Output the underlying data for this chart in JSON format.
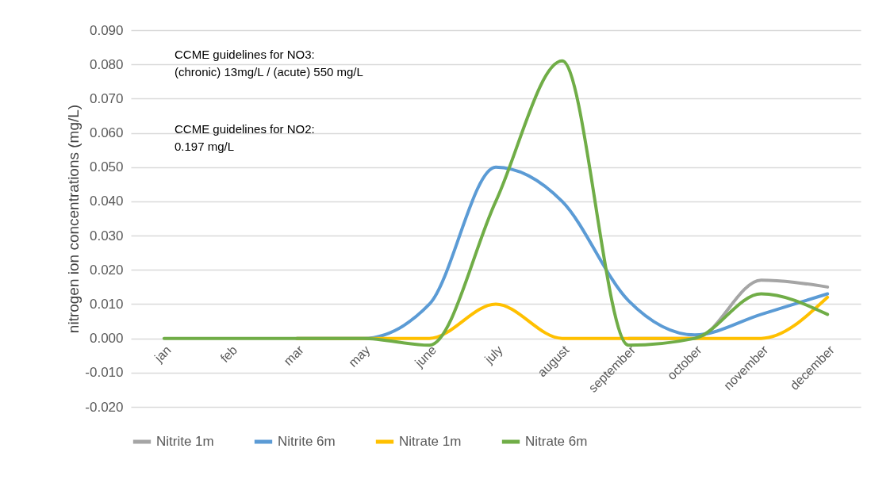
{
  "chart_data": {
    "type": "line",
    "ylabel": "nitrogen ion concentrations (mg/L)",
    "categories": [
      "jan",
      "feb",
      "mar",
      "may",
      "june",
      "july",
      "august",
      "september",
      "october",
      "november",
      "december"
    ],
    "series": [
      {
        "name": "Nitrite 1m",
        "color": "#a5a5a5",
        "values": [
          null,
          null,
          null,
          null,
          null,
          null,
          null,
          0.0,
          0.0,
          0.017,
          0.015
        ]
      },
      {
        "name": "Nitrite 6m",
        "color": "#5b9bd5",
        "values": [
          null,
          null,
          0,
          0,
          0.01,
          0.05,
          0.04,
          0.011,
          0.001,
          0.007,
          0.013
        ]
      },
      {
        "name": "Nitrate 1m",
        "color": "#ffc000",
        "values": [
          null,
          null,
          0,
          0,
          0,
          0.01,
          0,
          0,
          0,
          0,
          0.012
        ]
      },
      {
        "name": "Nitrate 6m",
        "color": "#70ad47",
        "values": [
          0,
          0,
          0,
          0,
          -0.002,
          0.04,
          0.081,
          -0.002,
          0,
          0.013,
          0.007
        ]
      }
    ],
    "ylim": [
      -0.02,
      0.09
    ],
    "yticks": [
      {
        "value": -0.02,
        "label": "-0.020"
      },
      {
        "value": -0.01,
        "label": "-0.010"
      },
      {
        "value": 0,
        "label": "0.000"
      },
      {
        "value": 0.01,
        "label": "0.010"
      },
      {
        "value": 0.02,
        "label": "0.020"
      },
      {
        "value": 0.03,
        "label": "0.030"
      },
      {
        "value": 0.04,
        "label": "0.040"
      },
      {
        "value": 0.05,
        "label": "0.050"
      },
      {
        "value": 0.06,
        "label": "0.060"
      },
      {
        "value": 0.07,
        "label": "0.070"
      },
      {
        "value": 0.08,
        "label": "0.080"
      },
      {
        "value": 0.09,
        "label": "0.090"
      }
    ],
    "grid": "y",
    "legend": "bottom",
    "annotations": [
      "CCME guidelines for NO3:\n(chronic) 13mg/L / (acute) 550 mg/L",
      "CCME guidelines for NO2:\n0.197 mg/L"
    ]
  }
}
